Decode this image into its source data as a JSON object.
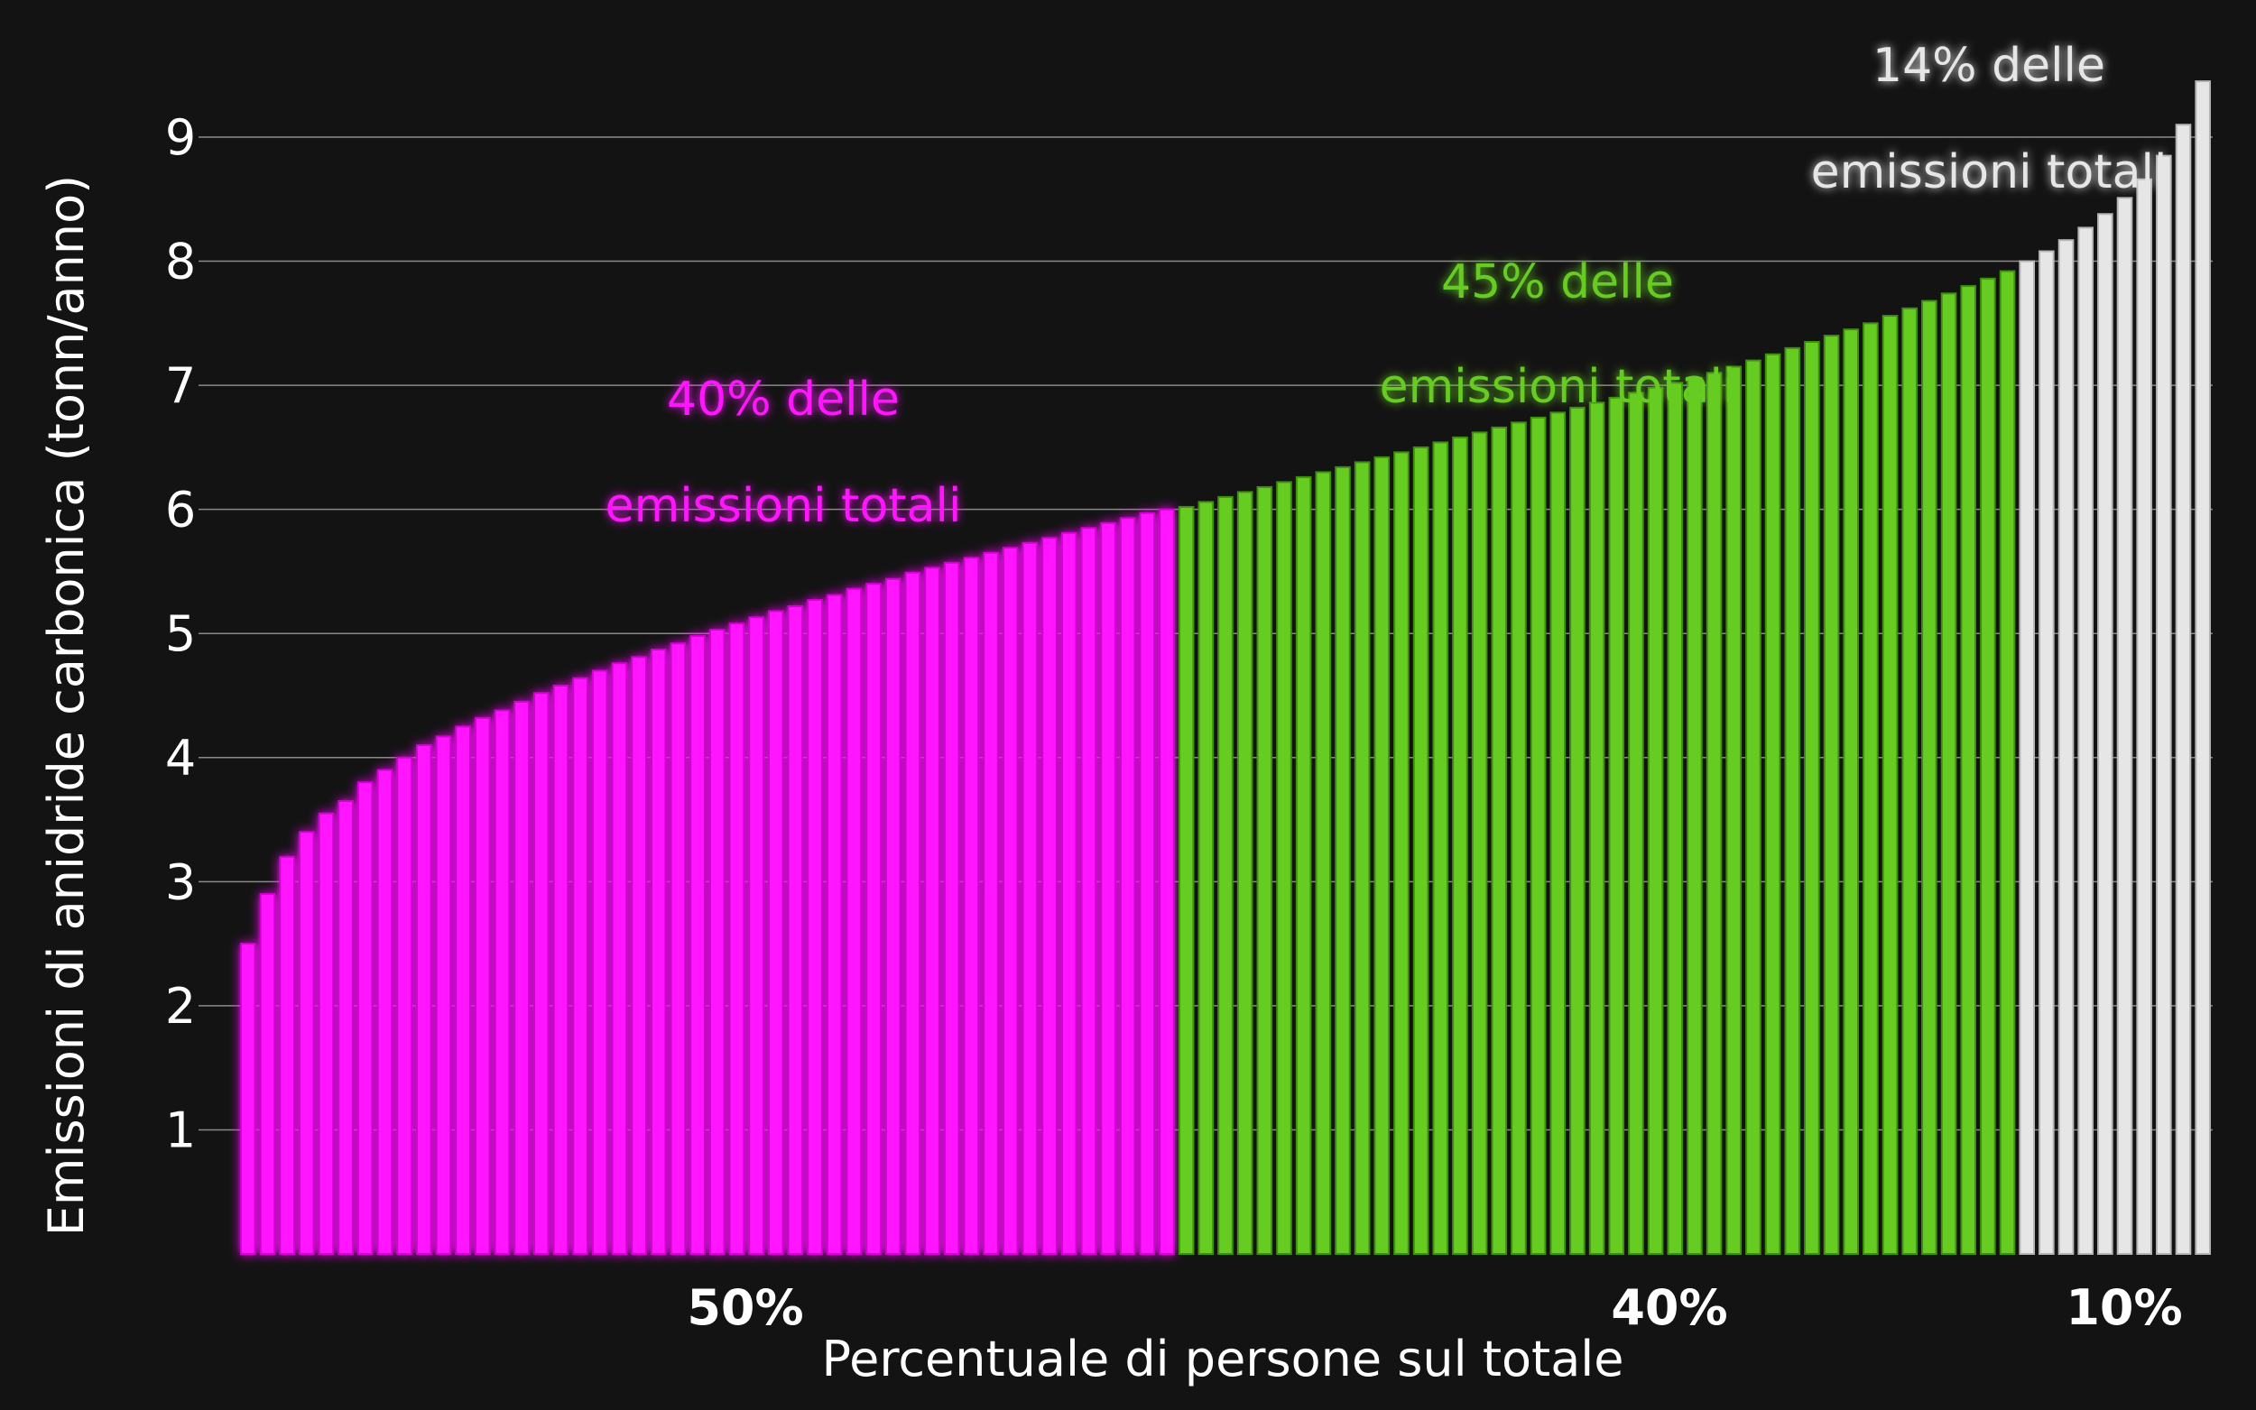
{
  "chart_data": {
    "type": "bar",
    "ylabel": "Emissioni di anidride carbonica (tonn/anno)",
    "xlabel": "Percentuale di persone sul totale",
    "ylim": [
      0,
      9.5
    ],
    "yticks": [
      1,
      2,
      3,
      4,
      5,
      6,
      7,
      8,
      9
    ],
    "grid": true,
    "colors": {
      "group1": "#ff19ff",
      "group2": "#66cc22",
      "group3": "#e6e6e6",
      "background": "#131313"
    },
    "series": [
      {
        "segment_label": "50%",
        "annotation": [
          "40% delle",
          "emissioni totali"
        ],
        "values": [
          2.5,
          2.9,
          3.2,
          3.4,
          3.55,
          3.65,
          3.8,
          3.9,
          4.0,
          4.1,
          4.17,
          4.25,
          4.32,
          4.38,
          4.45,
          4.52,
          4.58,
          4.64,
          4.7,
          4.76,
          4.81,
          4.87,
          4.92,
          4.98,
          5.03,
          5.08,
          5.13,
          5.18,
          5.22,
          5.27,
          5.31,
          5.36,
          5.4,
          5.44,
          5.49,
          5.53,
          5.57,
          5.61,
          5.65,
          5.69,
          5.73,
          5.77,
          5.81,
          5.85,
          5.89,
          5.93,
          5.97,
          6.0
        ]
      },
      {
        "segment_label": "40%",
        "annotation": [
          "45% delle",
          "emissioni totali"
        ],
        "values": [
          6.02,
          6.06,
          6.1,
          6.14,
          6.18,
          6.22,
          6.26,
          6.3,
          6.34,
          6.38,
          6.42,
          6.46,
          6.5,
          6.54,
          6.58,
          6.62,
          6.66,
          6.7,
          6.74,
          6.78,
          6.82,
          6.86,
          6.9,
          6.94,
          6.98,
          7.02,
          7.06,
          7.1,
          7.15,
          7.2,
          7.25,
          7.3,
          7.35,
          7.4,
          7.45,
          7.5,
          7.56,
          7.62,
          7.68,
          7.74,
          7.8,
          7.86,
          7.92
        ]
      },
      {
        "segment_label": "10%",
        "annotation": [
          "14% delle",
          "emissioni totali"
        ],
        "values": [
          8.0,
          8.08,
          8.17,
          8.27,
          8.38,
          8.51,
          8.66,
          8.85,
          9.1,
          9.45
        ]
      }
    ]
  }
}
